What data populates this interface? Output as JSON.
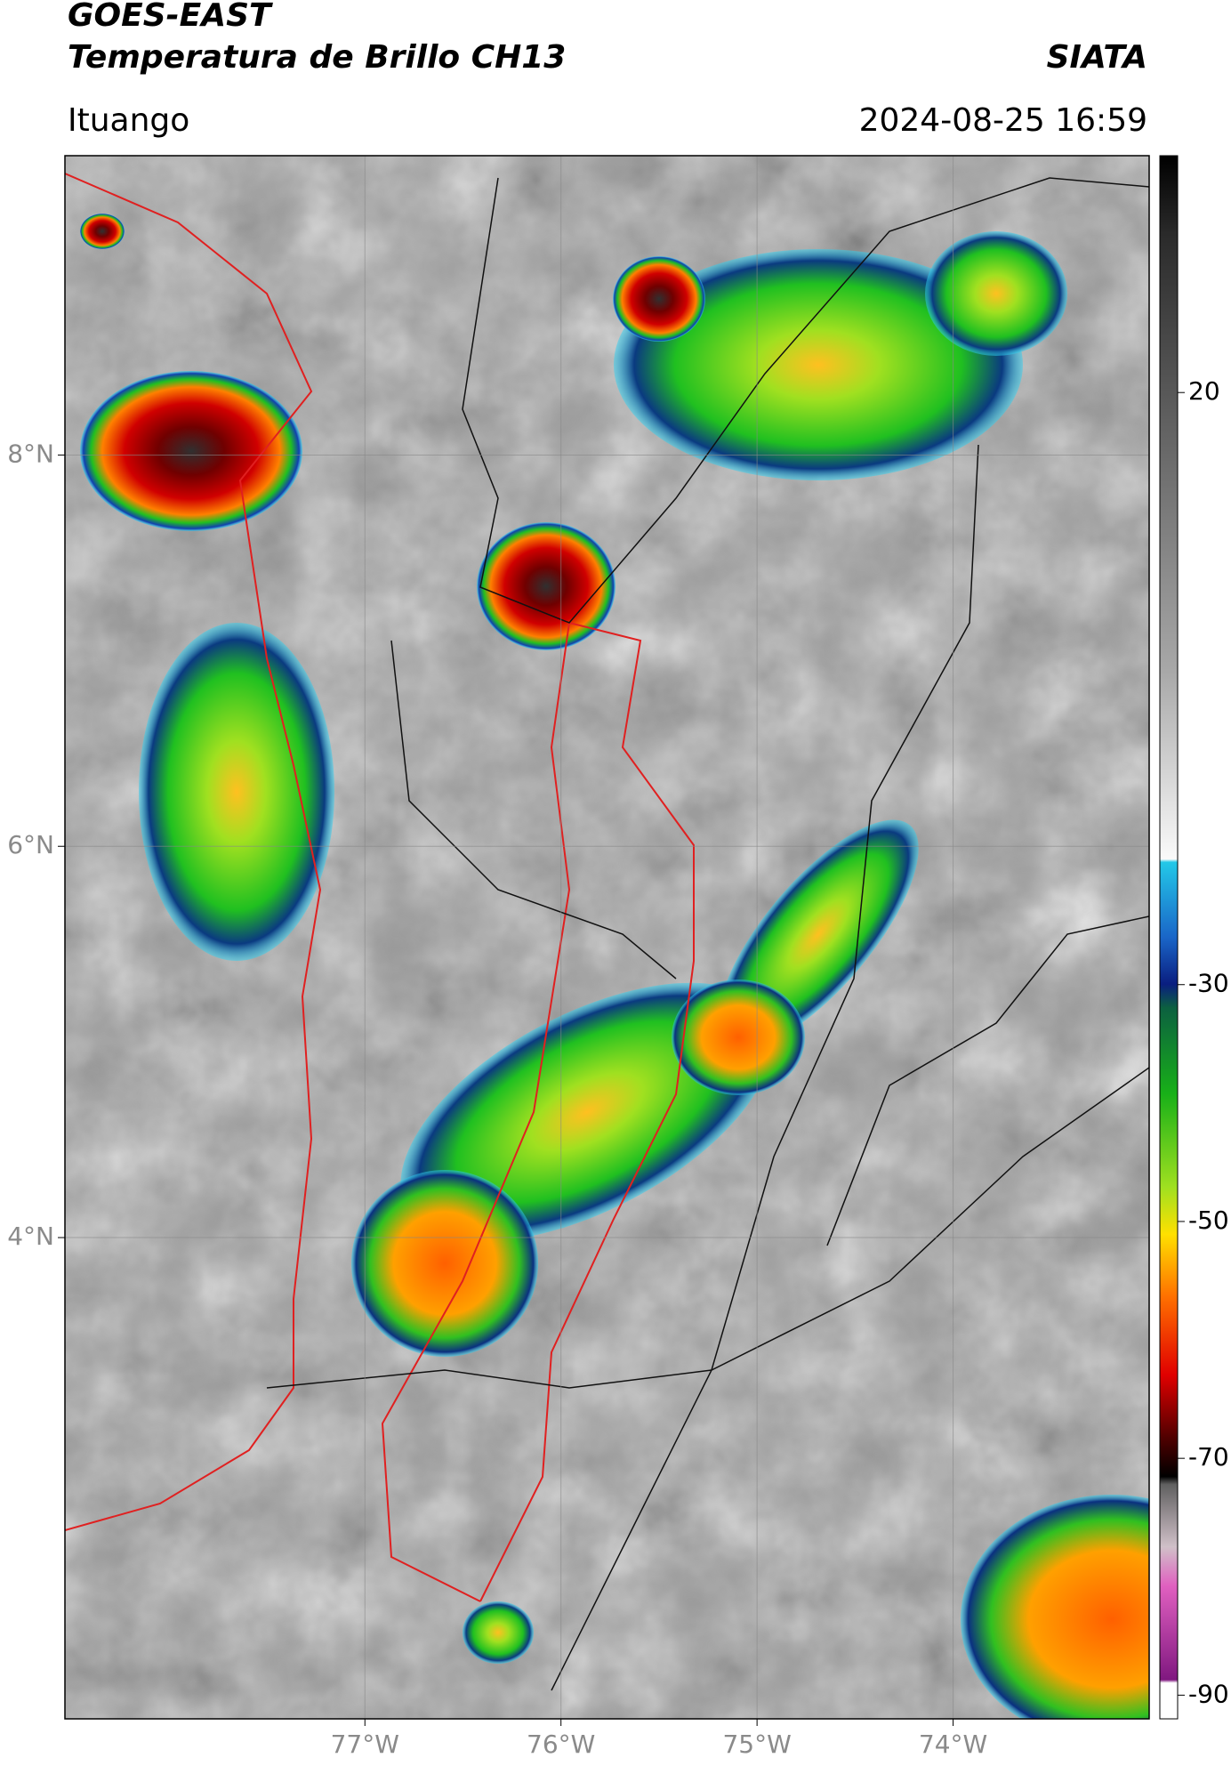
{
  "header": {
    "title": "GOES-EAST",
    "subtitle": "Temperatura de Brillo CH13",
    "brand": "SIATA",
    "location": "Ituango",
    "datetime": "2024-08-25 16:59"
  },
  "map": {
    "xlim": [
      -78.53,
      -73.0
    ],
    "ylim": [
      1.54,
      9.53
    ],
    "grid": true,
    "xticks": [
      {
        "value": -77,
        "label": "77°W"
      },
      {
        "value": -76,
        "label": "76°W"
      },
      {
        "value": -75,
        "label": "75°W"
      },
      {
        "value": -74,
        "label": "74°W"
      }
    ],
    "yticks": [
      {
        "value": 8,
        "label": "8°N"
      },
      {
        "value": 6,
        "label": "6°N"
      },
      {
        "value": 4,
        "label": "4°N"
      }
    ]
  },
  "colorbar": {
    "lim": [
      -92,
      40
    ],
    "ticks": [
      20,
      -30,
      -50,
      -70,
      -90
    ]
  }
}
